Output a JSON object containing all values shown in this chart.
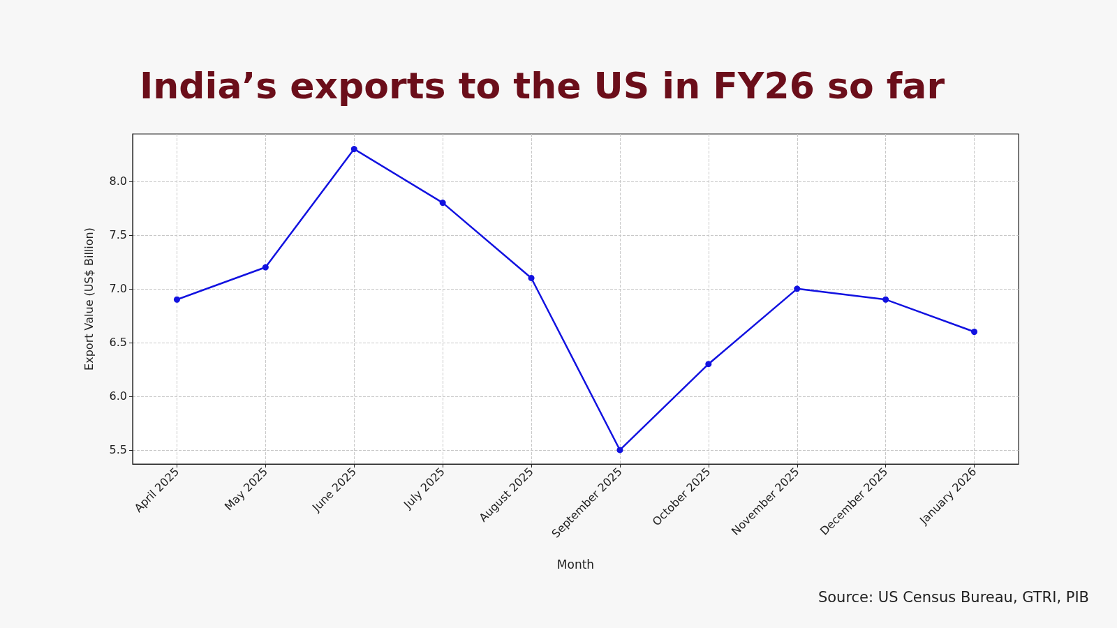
{
  "chart_data": {
    "type": "line",
    "title": "India’s exports to the US in FY26 so far",
    "xlabel": "Month",
    "ylabel": "Export Value (US$ Billion)",
    "annotations": [
      "Source: US Census Bureau, GTRI, PIB"
    ],
    "categories": [
      "April 2025",
      "May 2025",
      "June 2025",
      "July 2025",
      "August 2025",
      "September 2025",
      "October 2025",
      "November 2025",
      "December 2025",
      "January 2026"
    ],
    "series": [
      {
        "color": "#1212e0",
        "values": [
          6.9,
          7.2,
          8.3,
          7.8,
          7.1,
          5.5,
          6.3,
          7.0,
          6.9,
          6.6
        ]
      }
    ],
    "ylim": [
      5.37,
      8.44
    ],
    "yticks": [
      {
        "value": 5.5,
        "label": "5.5"
      },
      {
        "value": 6,
        "label": "6.0"
      },
      {
        "value": 6.5,
        "label": "6.5"
      },
      {
        "value": 7,
        "label": "7.0"
      },
      {
        "value": 7.5,
        "label": "7.5"
      },
      {
        "value": 8,
        "label": "8.0"
      }
    ],
    "grid": true,
    "marker": "circle",
    "line_style": "solid"
  }
}
